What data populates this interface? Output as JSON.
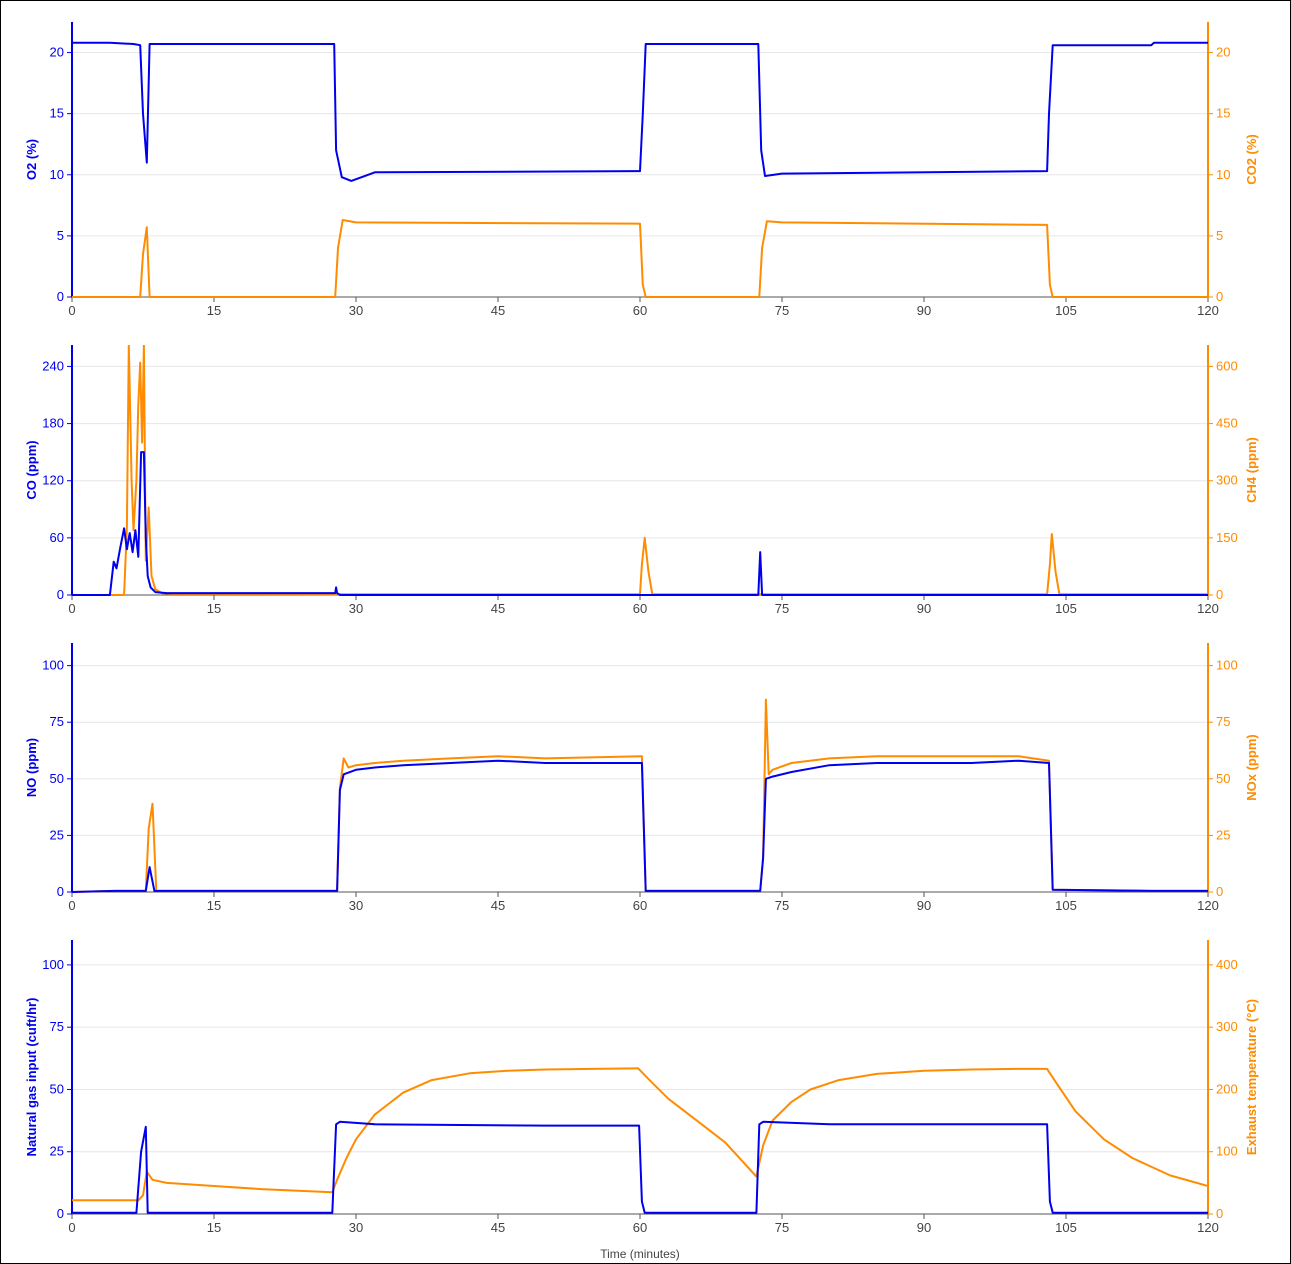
{
  "colors": {
    "left": "#0000ee",
    "right": "#ff8c00",
    "grid": "#e6e6e6",
    "axis": "#555555",
    "tick_text": "#444444"
  },
  "x_axis": {
    "title": "Time (minutes)",
    "range": [
      0,
      120
    ],
    "ticks": [
      0,
      15,
      30,
      45,
      60,
      75,
      90,
      105,
      120
    ]
  },
  "chart_data": [
    {
      "type": "line",
      "y_left": {
        "label": "O2 (%)",
        "range": [
          0,
          22.5
        ],
        "ticks": [
          0,
          5,
          10,
          15,
          20
        ]
      },
      "y_right": {
        "label": "CO2 (%)",
        "range": [
          0,
          22.5
        ],
        "ticks": [
          0,
          5,
          10,
          15,
          20
        ]
      },
      "series": [
        {
          "name": "O2 (%)",
          "axis": "left",
          "x": [
            0,
            4,
            6.5,
            7.2,
            7.5,
            7.9,
            8.2,
            27.7,
            27.9,
            28.5,
            29.5,
            32,
            60,
            60.3,
            60.6,
            72.5,
            72.8,
            73.2,
            75,
            103,
            103.2,
            103.6,
            114,
            114.3,
            120
          ],
          "y": [
            20.8,
            20.8,
            20.7,
            20.6,
            15,
            11,
            20.7,
            20.7,
            12,
            9.8,
            9.5,
            10.2,
            10.3,
            15,
            20.7,
            20.7,
            12,
            9.9,
            10.1,
            10.3,
            15,
            20.6,
            20.6,
            20.8,
            20.8
          ]
        },
        {
          "name": "CO2 (%)",
          "axis": "right",
          "x": [
            0,
            7.2,
            7.5,
            7.9,
            8.2,
            27.8,
            28.1,
            28.6,
            30,
            60,
            60.3,
            60.6,
            72.6,
            72.9,
            73.4,
            75,
            103,
            103.3,
            103.6,
            120
          ],
          "y": [
            0,
            0,
            3.5,
            5.7,
            0,
            0,
            4,
            6.3,
            6.1,
            6.0,
            1,
            0,
            0,
            4,
            6.2,
            6.1,
            5.9,
            1,
            0,
            0
          ]
        }
      ]
    },
    {
      "type": "line",
      "y_left": {
        "label": "CO (ppm)",
        "range": [
          0,
          262.5
        ],
        "ticks": [
          0,
          60,
          120,
          180,
          240
        ]
      },
      "y_right": {
        "label": "CH4 (ppm)",
        "range": [
          0,
          656.25
        ],
        "ticks": [
          0,
          150,
          300,
          450,
          600
        ]
      },
      "series": [
        {
          "name": "CO (ppm)",
          "axis": "left",
          "x": [
            0,
            4.0,
            4.4,
            4.7,
            5.1,
            5.5,
            5.8,
            6.1,
            6.4,
            6.7,
            7.0,
            7.3,
            7.6,
            7.8,
            8.0,
            8.3,
            8.8,
            10,
            27.8,
            27.9,
            28.0,
            28.3,
            72.5,
            72.7,
            72.9,
            73.0,
            120
          ],
          "y": [
            0,
            0,
            35,
            28,
            50,
            70,
            48,
            65,
            45,
            68,
            40,
            150,
            150,
            60,
            20,
            8,
            3,
            2,
            2,
            8,
            2,
            0,
            0,
            45,
            0,
            0,
            0
          ]
        },
        {
          "name": "CH4 (ppm)",
          "axis": "right",
          "x": [
            0,
            5.5,
            5.8,
            6.0,
            6.3,
            6.5,
            6.8,
            7.0,
            7.2,
            7.4,
            7.6,
            7.8,
            8.1,
            8.4,
            8.8,
            9.5,
            10.5,
            28,
            60,
            60.2,
            60.5,
            60.9,
            61.3,
            103,
            103.3,
            103.5,
            103.9,
            104.3,
            120
          ],
          "y": [
            0,
            0,
            180,
            656,
            300,
            170,
            300,
            500,
            610,
            400,
            656,
            90,
            230,
            50,
            15,
            5,
            3,
            2,
            2,
            80,
            150,
            60,
            2,
            2,
            80,
            160,
            60,
            2,
            2
          ]
        }
      ]
    },
    {
      "type": "line",
      "y_left": {
        "label": "NO (ppm)",
        "range": [
          0,
          110
        ],
        "ticks": [
          0,
          25,
          50,
          75,
          100
        ]
      },
      "y_right": {
        "label": "NOx (ppm)",
        "range": [
          0,
          110
        ],
        "ticks": [
          0,
          25,
          50,
          75,
          100
        ]
      },
      "series": [
        {
          "name": "NO (ppm)",
          "axis": "left",
          "x": [
            0,
            4.5,
            7.8,
            8.2,
            8.7,
            28.0,
            28.3,
            28.7,
            30,
            32,
            35,
            40,
            45,
            50,
            60.2,
            60.6,
            72.7,
            73.0,
            73.3,
            74,
            76,
            80,
            85,
            90,
            95,
            100,
            103.2,
            103.6,
            114,
            120
          ],
          "y": [
            0,
            0.5,
            0.5,
            11,
            0.5,
            0.5,
            45,
            52,
            54,
            55,
            56,
            57,
            58,
            57,
            57,
            0.5,
            0.5,
            15,
            50,
            51,
            53,
            56,
            57,
            57,
            57,
            58,
            57,
            1,
            0.5,
            0.5
          ]
        },
        {
          "name": "NOx (ppm)",
          "axis": "right",
          "x": [
            0,
            4.5,
            7.8,
            8.1,
            8.5,
            8.9,
            28.0,
            28.3,
            28.7,
            29.2,
            30,
            32,
            35,
            40,
            45,
            50,
            60.2,
            60.6,
            72.7,
            73.0,
            73.3,
            73.6,
            74,
            76,
            80,
            85,
            90,
            95,
            100,
            103.2,
            103.6,
            114,
            120
          ],
          "y": [
            0,
            0.5,
            0.5,
            28,
            39,
            0.5,
            0.5,
            46,
            59,
            55,
            56,
            57,
            58,
            59,
            60,
            59,
            60,
            0.5,
            0.5,
            15,
            85,
            52,
            54,
            57,
            59,
            60,
            60,
            60,
            60,
            58,
            1,
            0.5,
            0.5
          ]
        }
      ]
    },
    {
      "type": "line",
      "y_left": {
        "label": "Natural gas input (cuft/hr)",
        "range": [
          0,
          110
        ],
        "ticks": [
          0,
          25,
          50,
          75,
          100
        ]
      },
      "y_right": {
        "label": "Exhaust temperature (°C)",
        "range": [
          0,
          440
        ],
        "ticks": [
          0,
          100,
          200,
          300,
          400
        ]
      },
      "series": [
        {
          "name": "Natural gas input (cuft/hr)",
          "axis": "left",
          "x": [
            0,
            6.8,
            7.3,
            7.8,
            8.0,
            27.5,
            27.9,
            28.3,
            32,
            50,
            59.9,
            60.2,
            60.5,
            72.3,
            72.6,
            73.0,
            80,
            103.0,
            103.3,
            103.6,
            120
          ],
          "y": [
            0.5,
            0.5,
            25,
            35,
            0.5,
            0.5,
            36,
            37,
            36,
            35.5,
            35.5,
            5,
            0.5,
            0.5,
            36,
            37,
            36,
            36,
            5,
            0.5,
            0.5
          ]
        },
        {
          "name": "Exhaust temperature (°C)",
          "axis": "right",
          "x": [
            0,
            7.0,
            7.5,
            7.9,
            8.5,
            10,
            15,
            20,
            27.5,
            28,
            29,
            30,
            32,
            35,
            38,
            42,
            46,
            50,
            55,
            59.8,
            61,
            63,
            66,
            69,
            72.3,
            73,
            74,
            76,
            78,
            81,
            85,
            90,
            95,
            100,
            103,
            104,
            106,
            109,
            112,
            116,
            120
          ],
          "y": [
            22,
            22,
            30,
            68,
            55,
            50,
            45,
            40,
            35,
            55,
            90,
            120,
            160,
            195,
            215,
            226,
            230,
            232,
            233,
            234,
            215,
            185,
            150,
            115,
            60,
            110,
            150,
            180,
            200,
            215,
            225,
            230,
            232,
            233,
            233,
            210,
            165,
            120,
            90,
            62,
            45
          ]
        }
      ]
    }
  ]
}
